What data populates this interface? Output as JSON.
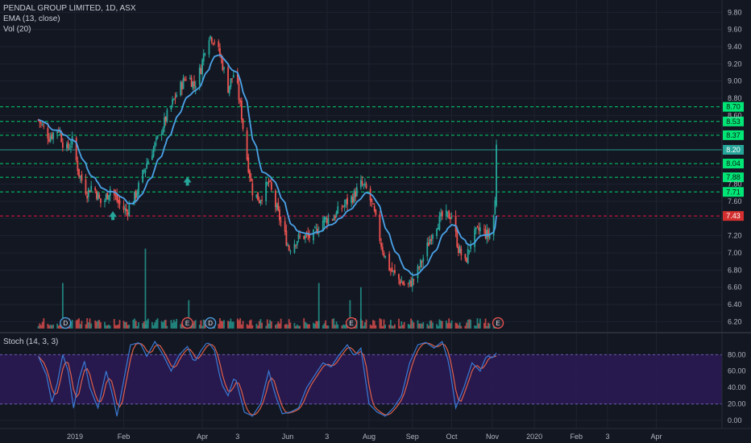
{
  "legend": {
    "symbol": "PENDAL GROUP LIMITED, 1D, ASX",
    "ema": "EMA (13, close)",
    "vol": "Vol (20)",
    "stoch": "Stoch (14, 3, 3)"
  },
  "colors": {
    "background": "#131722",
    "grid": "#1f2330",
    "up": "#26a69a",
    "down": "#ef5350",
    "ema": "#4aa3e8",
    "stoch_k": "#3a7bd5",
    "stoch_d": "#e0604a",
    "stoch_band": "#2b1a55",
    "green_level": "#00e676",
    "red_level": "#ff1744",
    "cyan_level": "#26a69a"
  },
  "chart_data": [
    {
      "type": "candlestick",
      "title": "PENDAL GROUP LIMITED, 1D, ASX",
      "ylim": [
        6.1,
        9.85
      ],
      "y_ticks": [
        "9.80",
        "9.60",
        "9.40",
        "9.20",
        "9.00",
        "8.80",
        "8.60",
        "8.40",
        "8.20",
        "8.00",
        "7.80",
        "7.60",
        "7.40",
        "7.20",
        "7.00",
        "6.80",
        "6.60",
        "6.40",
        "6.20"
      ],
      "x_ticks": [
        "2019",
        "Feb",
        "Apr",
        "3",
        "Jun",
        "3",
        "Aug",
        "Sep",
        "Oct",
        "Nov",
        "2020",
        "Feb",
        "3",
        "Apr"
      ],
      "x_tick_days": [
        27,
        63,
        121,
        147,
        184,
        213,
        244,
        276,
        305,
        335,
        366,
        397,
        420,
        456
      ],
      "last_day": 338,
      "price_path": [
        [
          0,
          8.55
        ],
        [
          8,
          8.35
        ],
        [
          15,
          8.45
        ],
        [
          20,
          8.18
        ],
        [
          25,
          8.3
        ],
        [
          30,
          7.92
        ],
        [
          36,
          7.7
        ],
        [
          40,
          7.8
        ],
        [
          47,
          7.55
        ],
        [
          53,
          7.75
        ],
        [
          60,
          7.56
        ],
        [
          65,
          7.48
        ],
        [
          72,
          7.68
        ],
        [
          80,
          8.05
        ],
        [
          88,
          8.32
        ],
        [
          95,
          8.6
        ],
        [
          102,
          8.85
        ],
        [
          110,
          9.08
        ],
        [
          115,
          8.95
        ],
        [
          120,
          9.15
        ],
        [
          125,
          9.55
        ],
        [
          130,
          9.48
        ],
        [
          135,
          9.25
        ],
        [
          140,
          8.92
        ],
        [
          145,
          9.12
        ],
        [
          150,
          8.6
        ],
        [
          153,
          8.2
        ],
        [
          158,
          7.72
        ],
        [
          163,
          7.62
        ],
        [
          170,
          7.82
        ],
        [
          175,
          7.55
        ],
        [
          180,
          7.3
        ],
        [
          185,
          7.05
        ],
        [
          190,
          7.15
        ],
        [
          195,
          7.2
        ],
        [
          202,
          7.18
        ],
        [
          210,
          7.38
        ],
        [
          218,
          7.42
        ],
        [
          225,
          7.55
        ],
        [
          232,
          7.65
        ],
        [
          238,
          7.8
        ],
        [
          243,
          7.72
        ],
        [
          248,
          7.45
        ],
        [
          253,
          7.1
        ],
        [
          258,
          6.85
        ],
        [
          264,
          6.72
        ],
        [
          272,
          6.6
        ],
        [
          278,
          6.72
        ],
        [
          285,
          6.98
        ],
        [
          292,
          7.3
        ],
        [
          298,
          7.42
        ],
        [
          305,
          7.44
        ],
        [
          310,
          7.05
        ],
        [
          315,
          6.88
        ],
        [
          320,
          7.18
        ],
        [
          326,
          7.28
        ],
        [
          332,
          7.2
        ],
        [
          335,
          7.28
        ],
        [
          337,
          7.6
        ],
        [
          338,
          8.26
        ]
      ],
      "horizontal_levels": [
        {
          "value": 8.7,
          "label": "8.70",
          "style": "dashed",
          "color": "green"
        },
        {
          "value": 8.53,
          "label": "8.53",
          "style": "dashed",
          "color": "green"
        },
        {
          "value": 8.37,
          "label": "8.37",
          "style": "dashed",
          "color": "green"
        },
        {
          "value": 8.2,
          "label": "8.20",
          "style": "solid",
          "color": "cyan"
        },
        {
          "value": 8.04,
          "label": "8.04",
          "style": "dashed",
          "color": "green"
        },
        {
          "value": 7.88,
          "label": "7.88",
          "style": "dashed",
          "color": "green"
        },
        {
          "value": 7.71,
          "label": "7.71",
          "style": "dashed",
          "color": "green"
        },
        {
          "value": 7.43,
          "label": "7.43",
          "style": "dashed",
          "color": "red"
        }
      ],
      "signals": [
        {
          "day": 55,
          "price": 7.42,
          "kind": "arrow-up"
        },
        {
          "day": 110,
          "price": 7.82,
          "kind": "arrow-up"
        }
      ],
      "events": [
        {
          "day": 20,
          "label": "D",
          "kind": "dividend"
        },
        {
          "day": 110,
          "label": "E",
          "kind": "earnings"
        },
        {
          "day": 127,
          "label": "D",
          "kind": "dividend"
        },
        {
          "day": 231,
          "label": "E",
          "kind": "earnings"
        }
      ],
      "volume_spikes": [
        {
          "day": 18,
          "value": 6.65
        },
        {
          "day": 79,
          "value": 7.05
        },
        {
          "day": 111,
          "value": 6.45
        },
        {
          "day": 207,
          "value": 6.65
        },
        {
          "day": 230,
          "value": 6.45
        },
        {
          "day": 238,
          "value": 6.6
        }
      ]
    },
    {
      "type": "line",
      "title": "Stoch (14, 3, 3)",
      "ylim": [
        -10,
        100
      ],
      "y_ticks": [
        "80.00",
        "60.00",
        "40.00",
        "20.00",
        "0.00"
      ],
      "band": [
        20,
        80
      ],
      "series": [
        {
          "name": "%K",
          "color": "stoch_k"
        },
        {
          "name": "%D",
          "color": "stoch_d"
        }
      ],
      "k_path": [
        [
          0,
          78
        ],
        [
          6,
          55
        ],
        [
          10,
          22
        ],
        [
          14,
          45
        ],
        [
          18,
          80
        ],
        [
          22,
          60
        ],
        [
          26,
          15
        ],
        [
          30,
          50
        ],
        [
          34,
          72
        ],
        [
          38,
          40
        ],
        [
          44,
          15
        ],
        [
          50,
          60
        ],
        [
          55,
          30
        ],
        [
          58,
          5
        ],
        [
          62,
          40
        ],
        [
          68,
          92
        ],
        [
          75,
          95
        ],
        [
          80,
          78
        ],
        [
          86,
          96
        ],
        [
          92,
          80
        ],
        [
          98,
          60
        ],
        [
          104,
          80
        ],
        [
          110,
          90
        ],
        [
          115,
          70
        ],
        [
          120,
          85
        ],
        [
          125,
          96
        ],
        [
          130,
          85
        ],
        [
          135,
          45
        ],
        [
          140,
          30
        ],
        [
          145,
          55
        ],
        [
          152,
          10
        ],
        [
          158,
          5
        ],
        [
          164,
          20
        ],
        [
          170,
          60
        ],
        [
          175,
          30
        ],
        [
          180,
          8
        ],
        [
          186,
          10
        ],
        [
          192,
          15
        ],
        [
          198,
          40
        ],
        [
          204,
          55
        ],
        [
          210,
          70
        ],
        [
          216,
          65
        ],
        [
          222,
          80
        ],
        [
          228,
          92
        ],
        [
          233,
          78
        ],
        [
          238,
          88
        ],
        [
          244,
          20
        ],
        [
          250,
          10
        ],
        [
          256,
          5
        ],
        [
          262,
          15
        ],
        [
          268,
          30
        ],
        [
          274,
          70
        ],
        [
          280,
          92
        ],
        [
          286,
          95
        ],
        [
          292,
          88
        ],
        [
          298,
          96
        ],
        [
          303,
          70
        ],
        [
          308,
          15
        ],
        [
          314,
          40
        ],
        [
          320,
          70
        ],
        [
          326,
          60
        ],
        [
          331,
          80
        ],
        [
          335,
          75
        ],
        [
          338,
          82
        ]
      ]
    }
  ]
}
